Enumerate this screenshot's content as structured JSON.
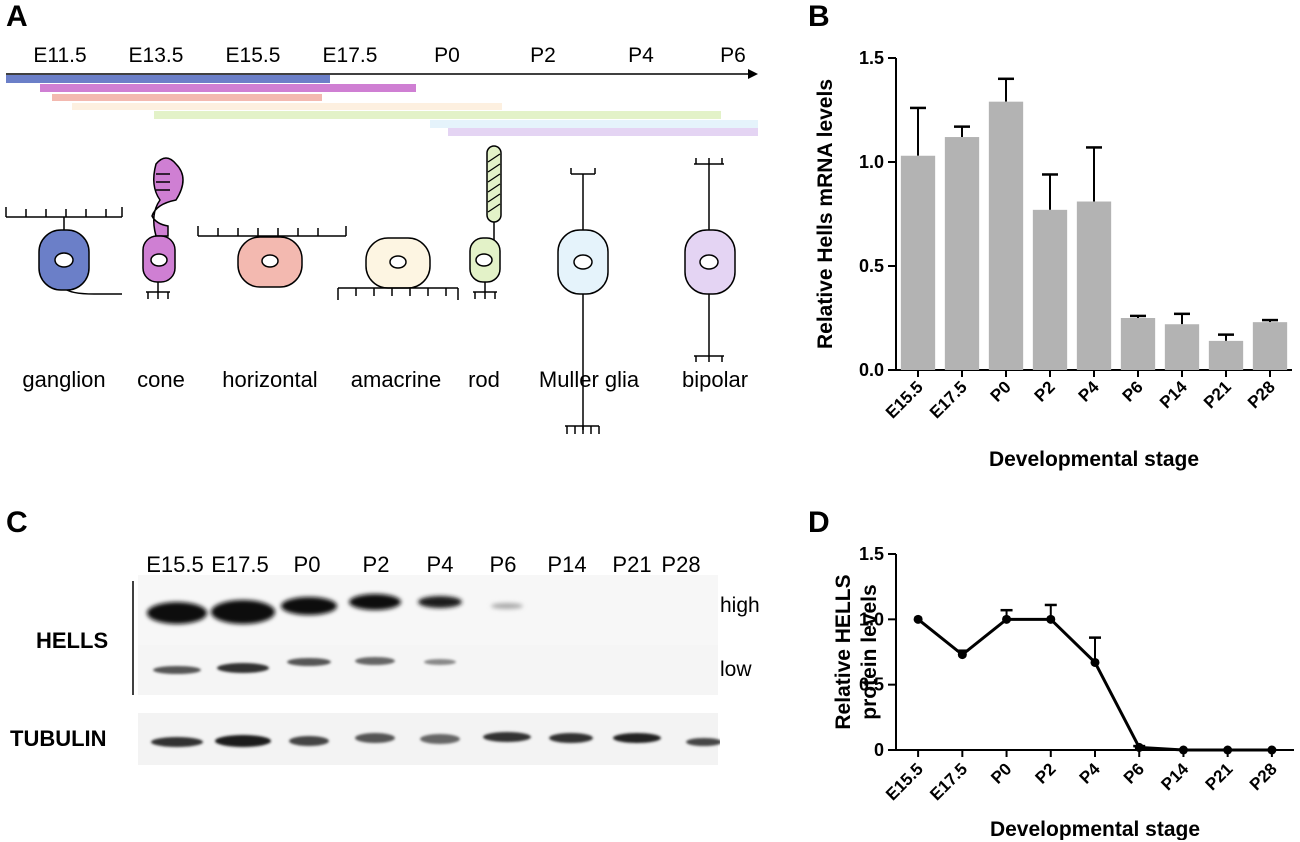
{
  "panels": {
    "a": "A",
    "b": "B",
    "c": "C",
    "d": "D"
  },
  "panel_a": {
    "timeline_labels": [
      "E11.5",
      "E13.5",
      "E15.5",
      "E17.5",
      "P0",
      "P2",
      "P4",
      "P6"
    ],
    "cell_types": [
      "ganglion",
      "cone",
      "horizontal",
      "amacrine",
      "rod",
      "Muller glia",
      "bipolar"
    ],
    "colors": {
      "ganglion": "#6b7fc8",
      "cone": "#cf7fd3",
      "horizontal": "#f3b9b0",
      "amacrine": "#fdf5e2",
      "rod": "#e3f2c8",
      "muller": "#e5f3fb",
      "bipolar": "#e4d4f3"
    }
  },
  "panel_c": {
    "lanes": [
      "E15.5",
      "E17.5",
      "P0",
      "P2",
      "P4",
      "P6",
      "P14",
      "P21",
      "P28"
    ],
    "proteins": {
      "hells": "HELLS",
      "tubulin": "TUBULIN"
    },
    "exposures": {
      "high": "high",
      "low": "low"
    }
  },
  "chart_data": [
    {
      "type": "bar",
      "categories": [
        "E15.5",
        "E17.5",
        "P0",
        "P2",
        "P4",
        "P6",
        "P14",
        "P21",
        "P28"
      ],
      "values": [
        1.03,
        1.12,
        1.29,
        0.77,
        0.81,
        0.25,
        0.22,
        0.14,
        0.23
      ],
      "errors": [
        0.23,
        0.05,
        0.11,
        0.17,
        0.26,
        0.01,
        0.05,
        0.03,
        0.01
      ],
      "ylabel": "Relative Hells mRNA levels",
      "xlabel": "Developmental stage",
      "ylim": [
        0,
        1.5
      ],
      "yticks": [
        "0.0",
        "0.5",
        "1.0",
        "1.5"
      ],
      "bar_color": "#b3b3b3"
    },
    {
      "type": "line",
      "categories": [
        "E15.5",
        "E17.5",
        "P0",
        "P2",
        "P4",
        "P6",
        "P14",
        "P21",
        "P28"
      ],
      "values": [
        1.0,
        0.73,
        1.0,
        1.0,
        0.67,
        0.02,
        0.0,
        0.0,
        0.0
      ],
      "errors": [
        0.0,
        0.03,
        0.07,
        0.11,
        0.19,
        0.01,
        0.0,
        0.0,
        0.0
      ],
      "ylabel": [
        "Relative HELLS",
        "protein levels"
      ],
      "xlabel": "Developmental stage",
      "ylim": [
        0,
        1.5
      ],
      "yticks": [
        "0",
        "0.5",
        "1.0",
        "1.5"
      ]
    }
  ]
}
